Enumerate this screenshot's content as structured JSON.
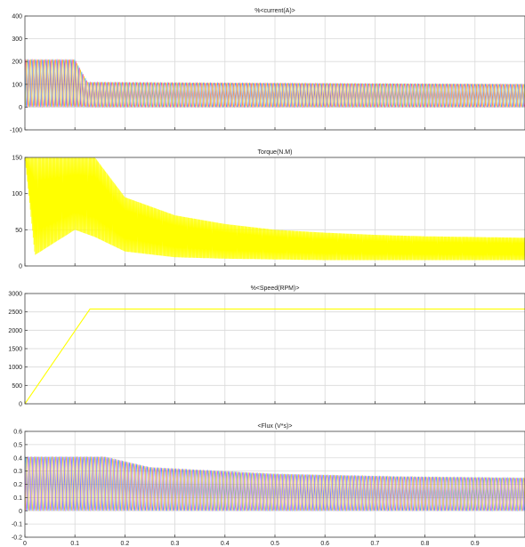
{
  "figure": {
    "background": "#ffffff",
    "axes_background": "#ffffff",
    "grid_color": "#d9d9d9",
    "axis_color": "#444444"
  },
  "chart_data": [
    {
      "type": "line",
      "title": "%<current(A)>",
      "xlim": [
        0,
        1
      ],
      "ylim": [
        -100,
        400
      ],
      "yticks": [
        -100,
        0,
        100,
        200,
        300,
        400
      ],
      "xticks": [
        0,
        0.1,
        0.2,
        0.3,
        0.4,
        0.5,
        0.6,
        0.7,
        0.8,
        0.9
      ],
      "xtick_labels_shown": false,
      "grid": true,
      "series": [
        {
          "color": "#ff2a7a",
          "kind": "three-phase-oscillation",
          "envelope_points": [
            [
              0,
              0,
              210
            ],
            [
              0.1,
              0,
              210
            ],
            [
              0.125,
              0,
              110
            ],
            [
              1.0,
              0,
              100
            ]
          ]
        },
        {
          "color": "#1e90ff",
          "kind": "three-phase-oscillation",
          "envelope_points": [
            [
              0,
              0,
              210
            ],
            [
              0.1,
              0,
              210
            ],
            [
              0.125,
              0,
              110
            ],
            [
              1.0,
              0,
              100
            ]
          ]
        },
        {
          "color": "#e6c200",
          "kind": "three-phase-oscillation",
          "envelope_points": [
            [
              0,
              0,
              210
            ],
            [
              0.1,
              0,
              210
            ],
            [
              0.125,
              0,
              110
            ],
            [
              1.0,
              0,
              100
            ]
          ]
        }
      ]
    },
    {
      "type": "area",
      "title": "Torque(N.M)",
      "xlim": [
        0,
        1
      ],
      "ylim": [
        0,
        150
      ],
      "yticks": [
        0,
        50,
        100,
        150
      ],
      "xticks": [
        0,
        0.1,
        0.2,
        0.3,
        0.4,
        0.5,
        0.6,
        0.7,
        0.8,
        0.9
      ],
      "xtick_labels_shown": false,
      "grid": true,
      "series": [
        {
          "color": "#ffff00",
          "kind": "ripple-band",
          "upper": [
            [
              0,
              150
            ],
            [
              0.1,
              150
            ],
            [
              0.14,
              150
            ],
            [
              0.2,
              95
            ],
            [
              0.3,
              70
            ],
            [
              0.4,
              58
            ],
            [
              0.5,
              50
            ],
            [
              0.6,
              46
            ],
            [
              0.7,
              43
            ],
            [
              0.8,
              41
            ],
            [
              0.9,
              40
            ],
            [
              1.0,
              39
            ]
          ],
          "lower": [
            [
              0,
              150
            ],
            [
              0.02,
              15
            ],
            [
              0.1,
              50
            ],
            [
              0.14,
              40
            ],
            [
              0.2,
              20
            ],
            [
              0.3,
              12
            ],
            [
              0.4,
              10
            ],
            [
              0.5,
              9
            ],
            [
              0.6,
              8
            ],
            [
              0.7,
              8
            ],
            [
              0.8,
              8
            ],
            [
              0.9,
              8
            ],
            [
              1.0,
              8
            ]
          ]
        }
      ]
    },
    {
      "type": "line",
      "title": "%<Speed(RPM)>",
      "xlim": [
        0,
        1
      ],
      "ylim": [
        0,
        3000
      ],
      "yticks": [
        0,
        500,
        1000,
        1500,
        2000,
        2500,
        3000
      ],
      "xticks": [
        0,
        0.1,
        0.2,
        0.3,
        0.4,
        0.5,
        0.6,
        0.7,
        0.8,
        0.9
      ],
      "xtick_labels_shown": false,
      "grid": true,
      "series": [
        {
          "color": "#ffff00",
          "x": [
            0,
            0.13,
            1.0
          ],
          "y": [
            0,
            2580,
            2580
          ]
        }
      ]
    },
    {
      "type": "line",
      "title": "<Flux (V*s)>",
      "xlim": [
        0,
        1
      ],
      "ylim": [
        -0.2,
        0.6
      ],
      "yticks": [
        -0.2,
        -0.1,
        0,
        0.1,
        0.2,
        0.3,
        0.4,
        0.5,
        0.6
      ],
      "xticks": [
        0,
        0.1,
        0.2,
        0.3,
        0.4,
        0.5,
        0.6,
        0.7,
        0.8,
        0.9
      ],
      "xtick_labels": [
        "0",
        "0.1",
        "0.2",
        "0.3",
        "0.4",
        "0.5",
        "0.6",
        "0.7",
        "0.8",
        "0.9"
      ],
      "grid": true,
      "series": [
        {
          "color": "#1e90ff",
          "kind": "three-phase-oscillation",
          "envelope_points": [
            [
              0,
              0,
              0.41
            ],
            [
              0.16,
              0,
              0.41
            ],
            [
              0.25,
              0,
              0.33
            ],
            [
              0.5,
              0,
              0.28
            ],
            [
              0.75,
              0,
              0.26
            ],
            [
              1.0,
              0,
              0.25
            ]
          ]
        },
        {
          "color": "#c040ff",
          "kind": "three-phase-oscillation",
          "envelope_points": [
            [
              0,
              0,
              0.41
            ],
            [
              0.16,
              0,
              0.41
            ],
            [
              0.25,
              0,
              0.33
            ],
            [
              0.5,
              0,
              0.28
            ],
            [
              0.75,
              0,
              0.26
            ],
            [
              1.0,
              0,
              0.25
            ]
          ]
        },
        {
          "color": "#e6c200",
          "kind": "three-phase-oscillation",
          "envelope_points": [
            [
              0,
              0,
              0.41
            ],
            [
              0.16,
              0,
              0.41
            ],
            [
              0.25,
              0,
              0.33
            ],
            [
              0.5,
              0,
              0.28
            ],
            [
              0.75,
              0,
              0.26
            ],
            [
              1.0,
              0,
              0.25
            ]
          ]
        }
      ]
    }
  ]
}
